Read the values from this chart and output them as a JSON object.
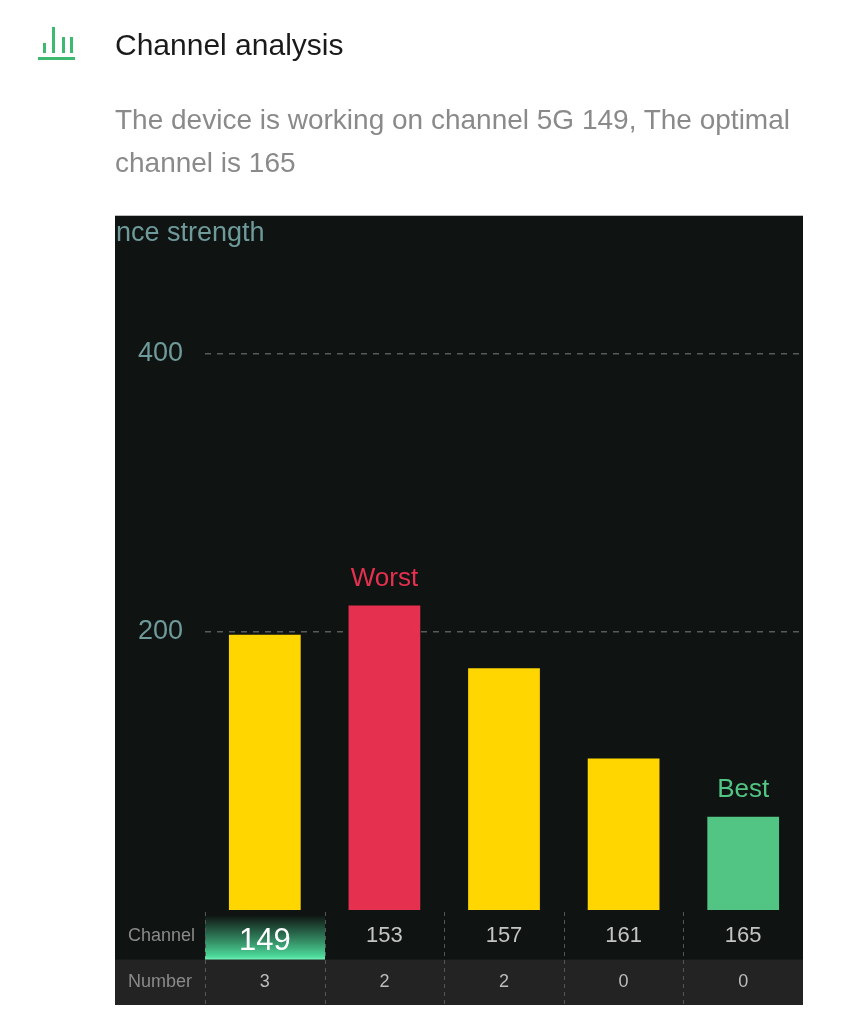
{
  "chart_data": {
    "type": "bar",
    "title": "Channel analysis",
    "subtitle": "The device is working on channel 5G 149, The optimal channel is 165",
    "xlabel": "Channel",
    "ylabel": "nce strength",
    "categories": [
      "149",
      "153",
      "157",
      "161",
      "165"
    ],
    "values": [
      198,
      219,
      174,
      109,
      67
    ],
    "colors": [
      "#ffd600",
      "#e5304f",
      "#ffd600",
      "#ffd600",
      "#52c483"
    ],
    "ylim": [
      0,
      500
    ],
    "yticks": [
      200,
      400
    ],
    "grid": "y",
    "annotations": [
      {
        "text": "Worst",
        "x": "153",
        "y": 219
      },
      {
        "text": "Best",
        "x": "165",
        "y": 67
      },
      "Number",
      "3",
      "2",
      "2",
      "0",
      "0"
    ]
  }
}
